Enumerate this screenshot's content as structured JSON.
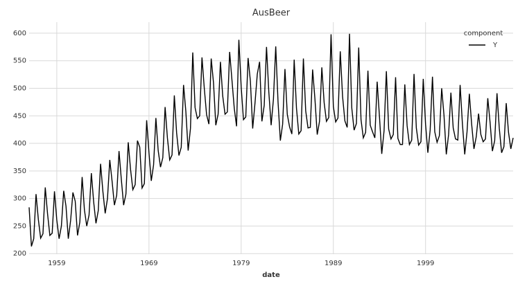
{
  "chart_data": {
    "type": "line",
    "title": "AusBeer",
    "x_label": "date",
    "legend_title": "component",
    "legend_position": "upper right",
    "grid": true,
    "x": [
      1956,
      1956.25,
      1956.5,
      1956.75,
      1957,
      1957.25,
      1957.5,
      1957.75,
      1958,
      1958.25,
      1958.5,
      1958.75,
      1959,
      1959.25,
      1959.5,
      1959.75,
      1960,
      1960.25,
      1960.5,
      1960.75,
      1961,
      1961.25,
      1961.5,
      1961.75,
      1962,
      1962.25,
      1962.5,
      1962.75,
      1963,
      1963.25,
      1963.5,
      1963.75,
      1964,
      1964.25,
      1964.5,
      1964.75,
      1965,
      1965.25,
      1965.5,
      1965.75,
      1966,
      1966.25,
      1966.5,
      1966.75,
      1967,
      1967.25,
      1967.5,
      1967.75,
      1968,
      1968.25,
      1968.5,
      1968.75,
      1969,
      1969.25,
      1969.5,
      1969.75,
      1970,
      1970.25,
      1970.5,
      1970.75,
      1971,
      1971.25,
      1971.5,
      1971.75,
      1972,
      1972.25,
      1972.5,
      1972.75,
      1973,
      1973.25,
      1973.5,
      1973.75,
      1974,
      1974.25,
      1974.5,
      1974.75,
      1975,
      1975.25,
      1975.5,
      1975.75,
      1976,
      1976.25,
      1976.5,
      1976.75,
      1977,
      1977.25,
      1977.5,
      1977.75,
      1978,
      1978.25,
      1978.5,
      1978.75,
      1979,
      1979.25,
      1979.5,
      1979.75,
      1980,
      1980.25,
      1980.5,
      1980.75,
      1981,
      1981.25,
      1981.5,
      1981.75,
      1982,
      1982.25,
      1982.5,
      1982.75,
      1983,
      1983.25,
      1983.5,
      1983.75,
      1984,
      1984.25,
      1984.5,
      1984.75,
      1985,
      1985.25,
      1985.5,
      1985.75,
      1986,
      1986.25,
      1986.5,
      1986.75,
      1987,
      1987.25,
      1987.5,
      1987.75,
      1988,
      1988.25,
      1988.5,
      1988.75,
      1989,
      1989.25,
      1989.5,
      1989.75,
      1990,
      1990.25,
      1990.5,
      1990.75,
      1991,
      1991.25,
      1991.5,
      1991.75,
      1992,
      1992.25,
      1992.5,
      1992.75,
      1993,
      1993.25,
      1993.5,
      1993.75,
      1994,
      1994.25,
      1994.5,
      1994.75,
      1995,
      1995.25,
      1995.5,
      1995.75,
      1996,
      1996.25,
      1996.5,
      1996.75,
      1997,
      1997.25,
      1997.5,
      1997.75,
      1998,
      1998.25,
      1998.5,
      1998.75,
      1999,
      1999.25,
      1999.5,
      1999.75,
      2000,
      2000.25,
      2000.5,
      2000.75,
      2001,
      2001.25,
      2001.5,
      2001.75,
      2002,
      2002.25,
      2002.5,
      2002.75,
      2003,
      2003.25,
      2003.5,
      2003.75,
      2004,
      2004.25,
      2004.5,
      2004.75,
      2005,
      2005.25,
      2005.5,
      2005.75,
      2006,
      2006.25,
      2006.5,
      2006.75,
      2007,
      2007.25,
      2007.5,
      2007.75,
      2008,
      2008.25,
      2008.5
    ],
    "series": [
      {
        "name": "Y",
        "color": "#000000",
        "values": [
          284,
          213,
          227,
          308,
          262,
          228,
          236,
          320,
          272,
          233,
          237,
          313,
          261,
          227,
          250,
          314,
          286,
          227,
          260,
          311,
          295,
          233,
          257,
          339,
          279,
          250,
          270,
          346,
          294,
          255,
          278,
          363,
          313,
          273,
          300,
          370,
          331,
          288,
          306,
          386,
          335,
          288,
          308,
          402,
          353,
          316,
          325,
          405,
          393,
          319,
          327,
          442,
          383,
          332,
          361,
          446,
          387,
          357,
          374,
          466,
          410,
          370,
          379,
          487,
          419,
          378,
          393,
          506,
          458,
          387,
          427,
          565,
          465,
          445,
          450,
          556,
          500,
          452,
          435,
          554,
          510,
          433,
          453,
          548,
          486,
          453,
          457,
          566,
          515,
          464,
          431,
          588,
          503,
          443,
          448,
          555,
          513,
          427,
          473,
          526,
          548,
          440,
          469,
          575,
          493,
          433,
          480,
          576,
          475,
          405,
          435,
          535,
          453,
          430,
          417,
          552,
          464,
          417,
          423,
          554,
          459,
          428,
          429,
          534,
          481,
          416,
          440,
          538,
          474,
          440,
          447,
          598,
          467,
          439,
          446,
          567,
          485,
          441,
          429,
          599,
          464,
          424,
          436,
          574,
          443,
          410,
          420,
          532,
          433,
          421,
          410,
          512,
          449,
          381,
          423,
          531,
          426,
          408,
          416,
          520,
          409,
          398,
          398,
          507,
          432,
          398,
          406,
          526,
          428,
          397,
          403,
          517,
          435,
          383,
          424,
          521,
          421,
          402,
          414,
          500,
          451,
          380,
          416,
          492,
          428,
          408,
          406,
          506,
          435,
          380,
          421,
          490,
          435,
          390,
          412,
          454,
          416,
          403,
          408,
          482,
          438,
          386,
          405,
          491,
          427,
          383,
          394,
          473,
          420,
          390,
          410
        ]
      }
    ],
    "xlim": [
      1956,
      2008.5
    ],
    "xticks": [
      1959,
      1969,
      1979,
      1989,
      1999
    ],
    "ylim": [
      199,
      620
    ],
    "yticks": [
      200,
      250,
      300,
      350,
      400,
      450,
      500,
      550,
      600
    ]
  }
}
